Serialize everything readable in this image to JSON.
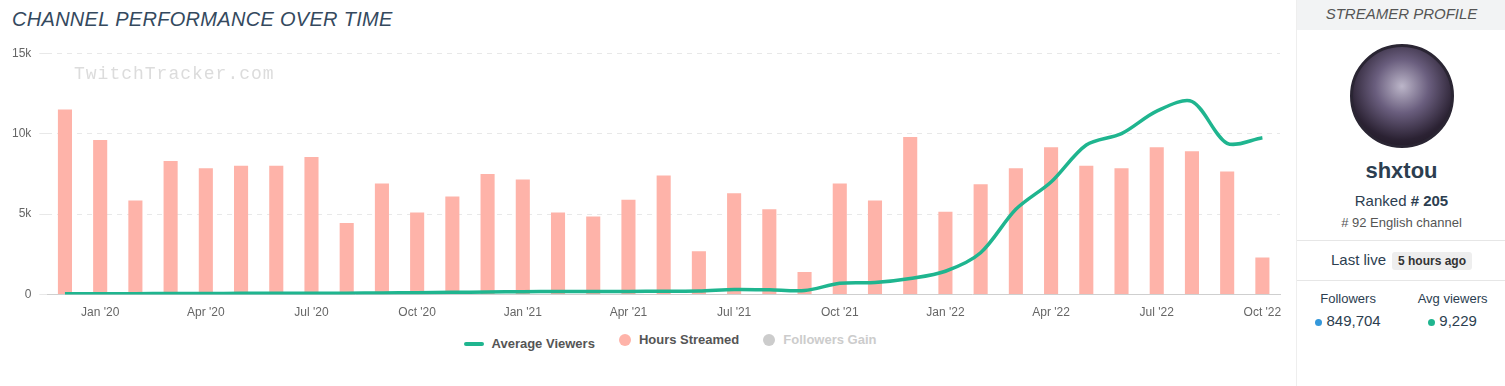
{
  "chart_data": {
    "type": "bar",
    "title": "CHANNEL PERFORMANCE OVER TIME",
    "watermark": "TwitchTracker.com",
    "categories": [
      null,
      "Jan '20",
      null,
      null,
      "Apr '20",
      null,
      null,
      "Jul '20",
      null,
      null,
      "Oct '20",
      null,
      null,
      "Jan '21",
      null,
      null,
      "Apr '21",
      null,
      null,
      "Jul '21",
      null,
      null,
      "Oct '21",
      null,
      null,
      "Jan '22",
      null,
      null,
      "Apr '22",
      null,
      null,
      "Jul '22",
      null,
      null,
      "Oct '22"
    ],
    "series": [
      {
        "name": "Average Viewers",
        "type": "line",
        "color": "#1fb58f",
        "values": [
          50,
          60,
          60,
          70,
          70,
          80,
          80,
          90,
          90,
          100,
          120,
          140,
          160,
          180,
          190,
          200,
          200,
          210,
          220,
          320,
          300,
          250,
          700,
          750,
          1000,
          1450,
          2600,
          5300,
          7000,
          9300,
          10000,
          11400,
          12000,
          9400,
          9750
        ]
      },
      {
        "name": "Hours Streamed",
        "type": "bar",
        "color": "#feb3a9",
        "values": [
          11500,
          9600,
          5850,
          8300,
          7850,
          8000,
          8000,
          8550,
          4450,
          6900,
          5100,
          6100,
          7500,
          7150,
          5100,
          4850,
          5900,
          7400,
          2700,
          6300,
          5300,
          1400,
          6900,
          5850,
          9800,
          5150,
          6850,
          7850,
          9150,
          8000,
          7850,
          9150,
          8900,
          7650,
          2300
        ]
      },
      {
        "name": "Followers Gain",
        "type": "bar",
        "color": "#cccccc",
        "values": [
          null,
          null,
          null,
          null,
          null,
          null,
          null,
          null,
          null,
          null,
          null,
          null,
          null,
          null,
          null,
          null,
          null,
          null,
          null,
          null,
          null,
          null,
          null,
          null,
          null,
          null,
          null,
          null,
          null,
          null,
          null,
          null,
          null,
          null,
          null
        ]
      }
    ],
    "ylim": [
      0,
      15000
    ],
    "yticks": [
      0,
      {
        "value": 5000,
        "label": "5k"
      },
      {
        "value": 10000,
        "label": "10k"
      },
      {
        "value": 15000,
        "label": "15k"
      }
    ],
    "grid": true,
    "legend": "bottom"
  },
  "profile": {
    "header": "STREAMER PROFILE",
    "name": "shxtou",
    "rank_label": "Ranked",
    "rank": "# 205",
    "english_rank": "# 92 English channel",
    "last_live_label": "Last live",
    "last_live": "5 hours ago",
    "stats": [
      {
        "label": "Followers",
        "value": "849,704",
        "color": "#3498db"
      },
      {
        "label": "Avg viewers",
        "value": "9,229",
        "color": "#1fb58f"
      }
    ]
  }
}
